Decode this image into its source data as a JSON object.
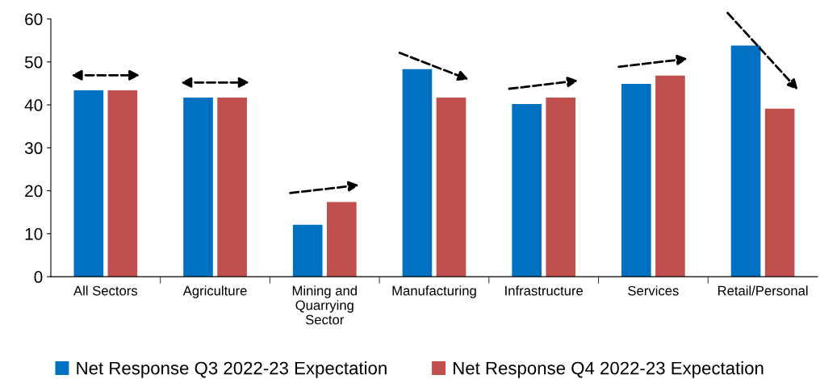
{
  "chart_data": {
    "type": "bar",
    "categories": [
      "All Sectors",
      "Agriculture",
      "Mining and\nQuarrying\nSector",
      "Manufacturing",
      "Infrastructure",
      "Services",
      "Retail/Personal"
    ],
    "series": [
      {
        "name": "Net Response Q3 2022-23 Expectation",
        "color": "#0070c0",
        "values": [
          43.4,
          41.7,
          12.1,
          48.3,
          40.2,
          44.9,
          53.8
        ]
      },
      {
        "name": "Net Response Q4 2022-23 Expectation",
        "color": "#c0504d",
        "values": [
          43.4,
          41.7,
          17.4,
          41.7,
          41.7,
          46.8,
          39.1
        ]
      }
    ],
    "ylim": [
      0,
      60
    ],
    "yticks": [
      0,
      10,
      20,
      30,
      40,
      50,
      60
    ],
    "grid": false,
    "legend": "bottom"
  }
}
